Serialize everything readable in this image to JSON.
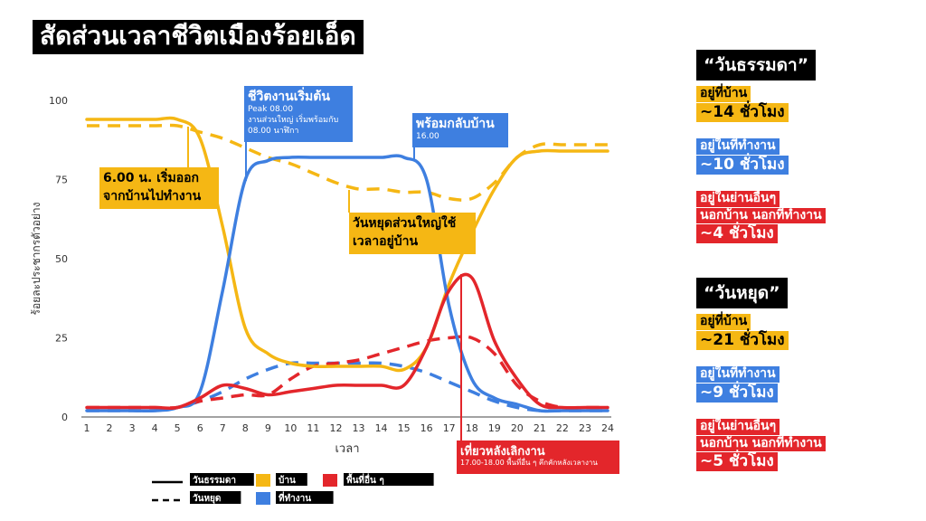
{
  "title": "สัดส่วนเวลาชีวิตเมืองร้อยเอ็ด",
  "chart_data": {
    "type": "line",
    "xlabel": "เวลา",
    "ylabel": "ร้อยละประชากรตัวอย่าง",
    "x": [
      1,
      2,
      3,
      4,
      5,
      6,
      7,
      8,
      9,
      10,
      11,
      12,
      13,
      14,
      15,
      16,
      17,
      18,
      19,
      20,
      21,
      22,
      23,
      24
    ],
    "xlim": [
      1,
      24
    ],
    "ylim": [
      0,
      100
    ],
    "yticks": [
      0,
      25,
      50,
      75,
      100
    ],
    "grid": false,
    "legend_position": "bottom",
    "series": [
      {
        "name": "บ้าน",
        "day": "วันธรรมดา",
        "style": "solid",
        "color": "#f5b714",
        "values": [
          94,
          94,
          94,
          94,
          94,
          88,
          60,
          28,
          20,
          17,
          16,
          16,
          16,
          16,
          15,
          22,
          42,
          58,
          72,
          82,
          84,
          84,
          84,
          84
        ]
      },
      {
        "name": "บ้าน",
        "day": "วันหยุด",
        "style": "dashed",
        "color": "#f5b714",
        "values": [
          92,
          92,
          92,
          92,
          92,
          90,
          88,
          85,
          82,
          80,
          77,
          74,
          72,
          72,
          71,
          71,
          69,
          69,
          74,
          82,
          86,
          86,
          86,
          86
        ]
      },
      {
        "name": "ที่ทำงาน",
        "day": "วันธรรมดา",
        "style": "solid",
        "color": "#3e7fe0",
        "values": [
          2,
          2,
          2,
          2,
          3,
          8,
          40,
          75,
          81,
          82,
          82,
          82,
          82,
          82,
          82,
          75,
          35,
          12,
          6,
          4,
          2,
          2,
          2,
          2
        ]
      },
      {
        "name": "ที่ทำงาน",
        "day": "วันหยุด",
        "style": "dashed",
        "color": "#3e7fe0",
        "values": [
          2,
          2,
          2,
          2,
          3,
          5,
          8,
          12,
          15,
          17,
          17,
          17,
          17,
          17,
          16,
          14,
          11,
          8,
          5,
          3,
          2,
          2,
          2,
          2
        ]
      },
      {
        "name": "พื้นที่อื่น ๆ",
        "day": "วันธรรมดา",
        "style": "solid",
        "color": "#e3262b",
        "values": [
          3,
          3,
          3,
          3,
          3,
          6,
          10,
          9,
          7,
          8,
          9,
          10,
          10,
          10,
          10,
          22,
          40,
          44,
          24,
          12,
          4,
          3,
          3,
          3
        ]
      },
      {
        "name": "พื้นที่อื่น ๆ",
        "day": "วันหยุด",
        "style": "dashed",
        "color": "#e3262b",
        "values": [
          3,
          3,
          3,
          3,
          3,
          5,
          6,
          7,
          7,
          12,
          16,
          17,
          18,
          20,
          22,
          24,
          25,
          25,
          20,
          10,
          5,
          3,
          3,
          3
        ]
      }
    ],
    "annotations": [
      {
        "id": "leave",
        "lines": [
          "6.00 น. เริ่มออก",
          "จากบ้านไปทำงาน"
        ],
        "style": "yellow"
      },
      {
        "id": "work",
        "lines": [
          "ชีวิตงานเริ่มต้น"
        ],
        "sub": [
          "Peak 08.00",
          "งานส่วนใหญ่ เริ่มพร้อมกับ",
          "08.00 นาฬิกา"
        ],
        "style": "blue"
      },
      {
        "id": "home",
        "lines": [
          "พร้อมกลับบ้าน"
        ],
        "sub": [
          "16.00"
        ],
        "style": "blue"
      },
      {
        "id": "holiday",
        "lines": [
          "วันหยุดส่วนใหญ่ใช้",
          "เวลาอยู่บ้าน"
        ],
        "style": "yellow"
      },
      {
        "id": "evening",
        "lines": [
          "เที่ยวหลังเลิกงาน"
        ],
        "sub": [
          "17.00-18.00 พื้นที่อื่น ๆ คึกคักหลังเวลางาน"
        ],
        "style": "red"
      }
    ],
    "legend": {
      "solid": "วันธรรมดา",
      "dashed": "วันหยุด",
      "home": "บ้าน",
      "work": "ที่ทำงาน",
      "other": "พื้นที่อื่น ๆ"
    }
  },
  "summary": {
    "weekday": {
      "heading": "“วันธรรมดา”",
      "home": [
        "อยู่ที่บ้าน",
        "~14 ชั่วโมง"
      ],
      "work": [
        "อยู่ในที่ทำงาน",
        "~10 ชั่วโมง"
      ],
      "other": [
        "อยู่ในย่านอื่นๆ",
        "นอกบ้าน นอกที่ทำงาน",
        "~4 ชั่วโมง"
      ]
    },
    "holiday": {
      "heading": "“วันหยุด”",
      "home": [
        "อยู่ที่บ้าน",
        "~21 ชั่วโมง"
      ],
      "work": [
        "อยู่ในที่ทำงาน",
        "~9 ชั่วโมง"
      ],
      "other": [
        "อยู่ในย่านอื่นๆ",
        "นอกบ้าน นอกที่ทำงาน",
        "~5 ชั่วโมง"
      ]
    }
  }
}
